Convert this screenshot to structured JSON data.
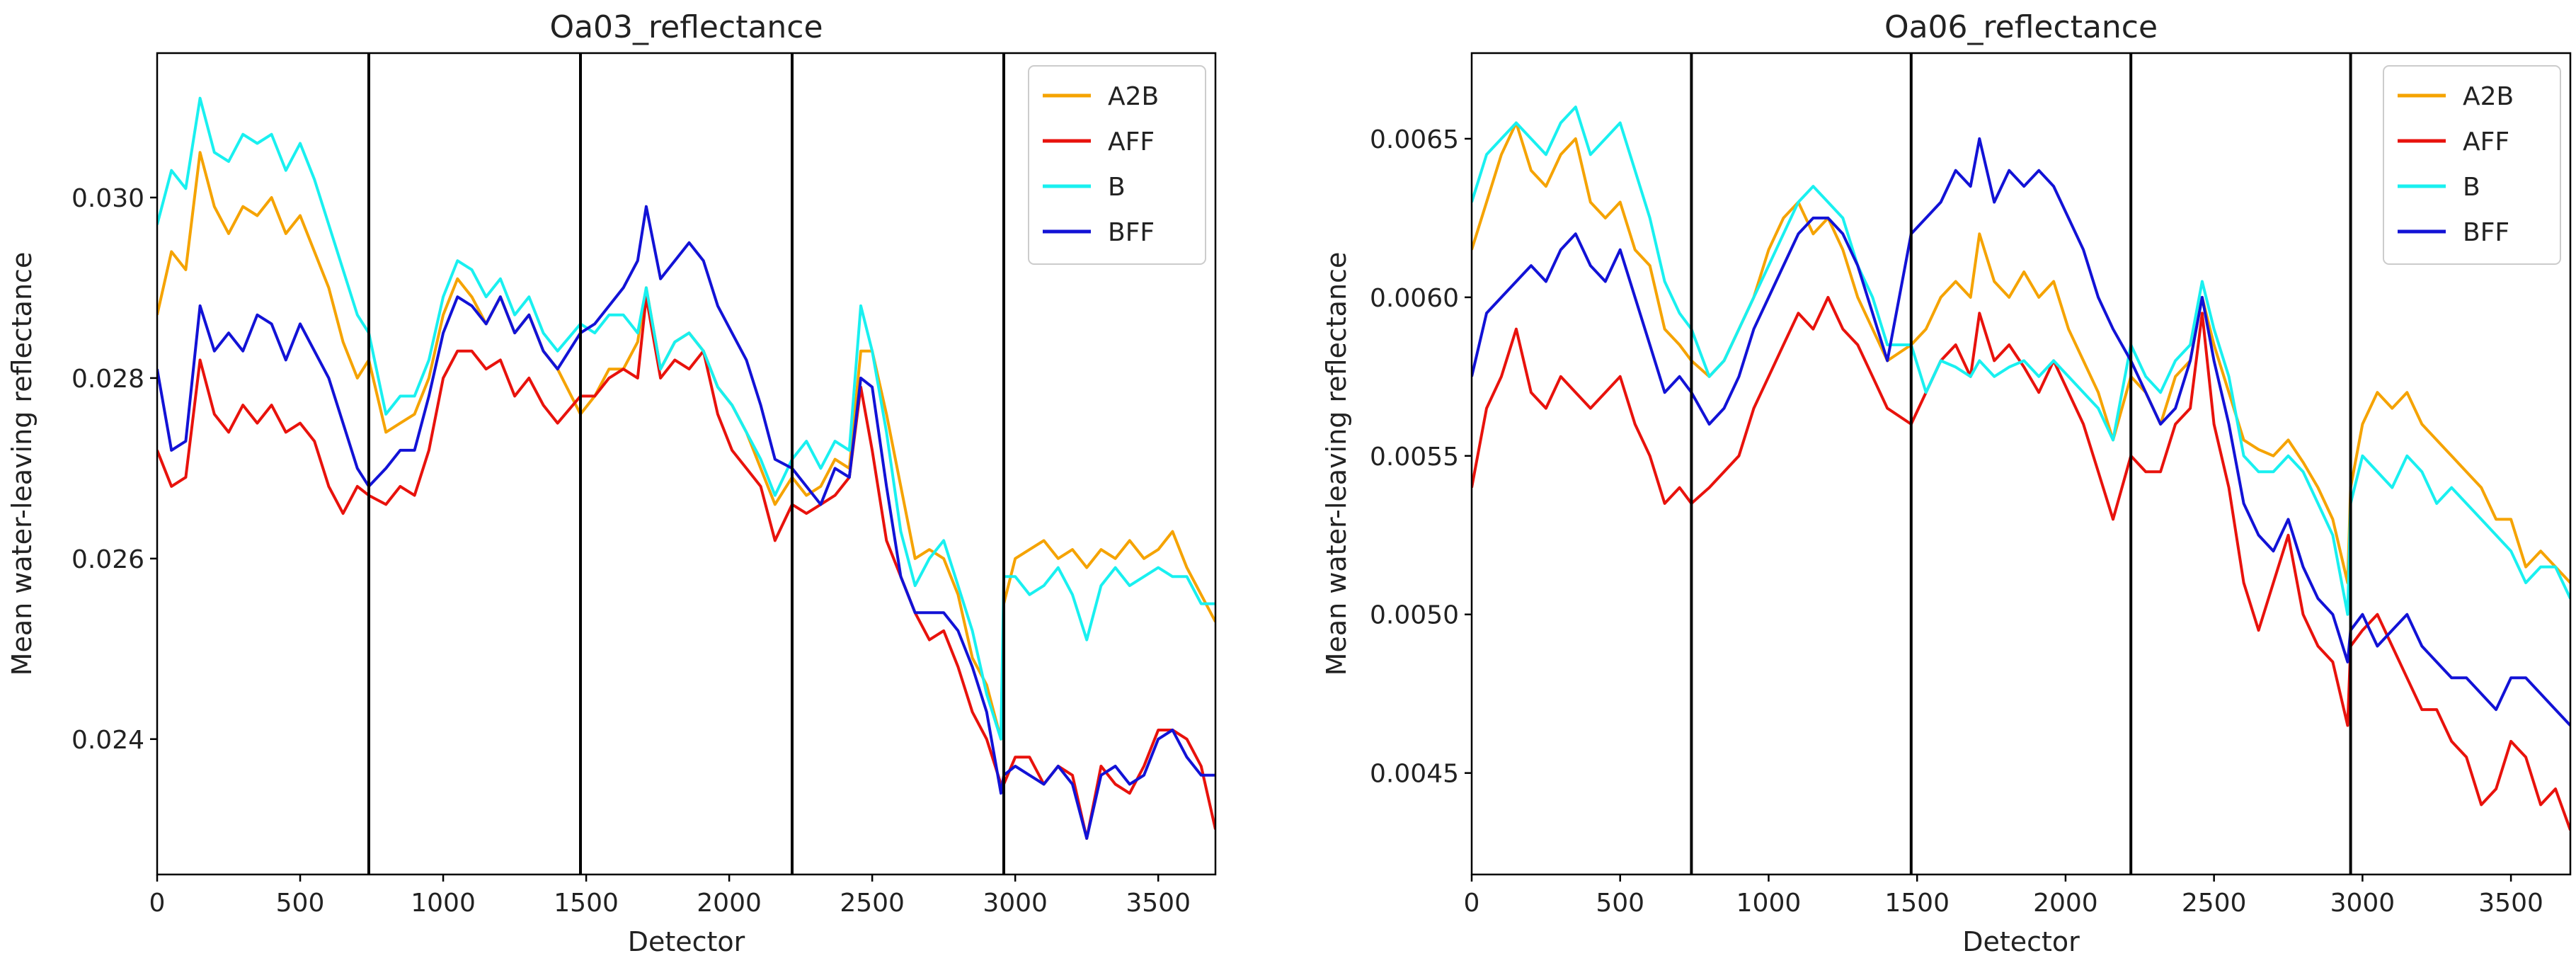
{
  "figure": {
    "series_colors": {
      "A2B": "#f5a300",
      "AFF": "#e8120c",
      "B": "#19f0f0",
      "BFF": "#1212d6"
    }
  },
  "chart_data": [
    {
      "type": "line",
      "title": "Oa03_reflectance",
      "xlabel": "Detector",
      "ylabel": "Mean water-leaving reflectance",
      "xlim": [
        0,
        3700
      ],
      "ylim": [
        0.0225,
        0.0316
      ],
      "xticks": [
        0,
        500,
        1000,
        1500,
        2000,
        2500,
        3000,
        3500
      ],
      "xtick_labels": [
        "0",
        "500",
        "1000",
        "1500",
        "2000",
        "2500",
        "3000",
        "3500"
      ],
      "yticks": [
        0.024,
        0.026,
        0.028,
        0.03
      ],
      "ytick_labels": [
        "0.024",
        "0.026",
        "0.028",
        "0.030"
      ],
      "vlines": [
        740,
        1480,
        2220,
        2960
      ],
      "legend_position": "top-right",
      "x": [
        0,
        50,
        100,
        150,
        200,
        250,
        300,
        350,
        400,
        450,
        500,
        550,
        600,
        650,
        700,
        740,
        800,
        850,
        900,
        950,
        1000,
        1050,
        1100,
        1150,
        1200,
        1250,
        1300,
        1350,
        1400,
        1480,
        1530,
        1580,
        1630,
        1680,
        1710,
        1760,
        1810,
        1860,
        1910,
        1960,
        2010,
        2060,
        2110,
        2160,
        2220,
        2270,
        2320,
        2370,
        2420,
        2460,
        2500,
        2550,
        2600,
        2650,
        2700,
        2750,
        2800,
        2850,
        2900,
        2950,
        2960,
        3000,
        3050,
        3100,
        3150,
        3200,
        3250,
        3300,
        3350,
        3400,
        3450,
        3500,
        3550,
        3600,
        3650,
        3700
      ],
      "series": [
        {
          "name": "A2B",
          "values": [
            0.0287,
            0.0294,
            0.0292,
            0.0305,
            0.0299,
            0.0296,
            0.0299,
            0.0298,
            0.03,
            0.0296,
            0.0298,
            0.0294,
            0.029,
            0.0284,
            0.028,
            0.0282,
            0.0274,
            0.0275,
            0.0276,
            0.028,
            0.0287,
            0.0291,
            0.0289,
            0.0286,
            0.0289,
            0.0285,
            0.0287,
            0.0283,
            0.0281,
            0.0276,
            0.0278,
            0.0281,
            0.0281,
            0.0284,
            0.029,
            0.0281,
            0.0284,
            0.0285,
            0.0283,
            0.0279,
            0.0277,
            0.0274,
            0.027,
            0.0266,
            0.0269,
            0.0267,
            0.0268,
            0.0271,
            0.027,
            0.0283,
            0.0283,
            0.0276,
            0.0268,
            0.026,
            0.0261,
            0.026,
            0.0256,
            0.0249,
            0.0246,
            0.024,
            0.0255,
            0.026,
            0.0261,
            0.0262,
            0.026,
            0.0261,
            0.0259,
            0.0261,
            0.026,
            0.0262,
            0.026,
            0.0261,
            0.0263,
            0.0259,
            0.0256,
            0.0253
          ]
        },
        {
          "name": "AFF",
          "values": [
            0.0272,
            0.0268,
            0.0269,
            0.0282,
            0.0276,
            0.0274,
            0.0277,
            0.0275,
            0.0277,
            0.0274,
            0.0275,
            0.0273,
            0.0268,
            0.0265,
            0.0268,
            0.0267,
            0.0266,
            0.0268,
            0.0267,
            0.0272,
            0.028,
            0.0283,
            0.0283,
            0.0281,
            0.0282,
            0.0278,
            0.028,
            0.0277,
            0.0275,
            0.0278,
            0.0278,
            0.028,
            0.0281,
            0.028,
            0.0289,
            0.028,
            0.0282,
            0.0281,
            0.0283,
            0.0276,
            0.0272,
            0.027,
            0.0268,
            0.0262,
            0.0266,
            0.0265,
            0.0266,
            0.0267,
            0.0269,
            0.0279,
            0.0272,
            0.0262,
            0.0258,
            0.0254,
            0.0251,
            0.0252,
            0.0248,
            0.0243,
            0.024,
            0.0235,
            0.0235,
            0.0238,
            0.0238,
            0.0235,
            0.0237,
            0.0236,
            0.0229,
            0.0237,
            0.0235,
            0.0234,
            0.0237,
            0.0241,
            0.0241,
            0.024,
            0.0237,
            0.023
          ]
        },
        {
          "name": "B",
          "values": [
            0.0297,
            0.0303,
            0.0301,
            0.0311,
            0.0305,
            0.0304,
            0.0307,
            0.0306,
            0.0307,
            0.0303,
            0.0306,
            0.0302,
            0.0297,
            0.0292,
            0.0287,
            0.0285,
            0.0276,
            0.0278,
            0.0278,
            0.0282,
            0.0289,
            0.0293,
            0.0292,
            0.0289,
            0.0291,
            0.0287,
            0.0289,
            0.0285,
            0.0283,
            0.0286,
            0.0285,
            0.0287,
            0.0287,
            0.0285,
            0.029,
            0.0281,
            0.0284,
            0.0285,
            0.0283,
            0.0279,
            0.0277,
            0.0274,
            0.0271,
            0.0267,
            0.0271,
            0.0273,
            0.027,
            0.0273,
            0.0272,
            0.0288,
            0.0283,
            0.0274,
            0.0263,
            0.0257,
            0.026,
            0.0262,
            0.0257,
            0.0252,
            0.0245,
            0.024,
            0.0258,
            0.0258,
            0.0256,
            0.0257,
            0.0259,
            0.0256,
            0.0251,
            0.0257,
            0.0259,
            0.0257,
            0.0258,
            0.0259,
            0.0258,
            0.0258,
            0.0255,
            0.0255
          ]
        },
        {
          "name": "BFF",
          "values": [
            0.0281,
            0.0272,
            0.0273,
            0.0288,
            0.0283,
            0.0285,
            0.0283,
            0.0287,
            0.0286,
            0.0282,
            0.0286,
            0.0283,
            0.028,
            0.0275,
            0.027,
            0.0268,
            0.027,
            0.0272,
            0.0272,
            0.0278,
            0.0285,
            0.0289,
            0.0288,
            0.0286,
            0.0289,
            0.0285,
            0.0287,
            0.0283,
            0.0281,
            0.0285,
            0.0286,
            0.0288,
            0.029,
            0.0293,
            0.0299,
            0.0291,
            0.0293,
            0.0295,
            0.0293,
            0.0288,
            0.0285,
            0.0282,
            0.0277,
            0.0271,
            0.027,
            0.0268,
            0.0266,
            0.027,
            0.0269,
            0.028,
            0.0279,
            0.0268,
            0.0258,
            0.0254,
            0.0254,
            0.0254,
            0.0252,
            0.0248,
            0.0243,
            0.0234,
            0.0236,
            0.0237,
            0.0236,
            0.0235,
            0.0237,
            0.0235,
            0.0229,
            0.0236,
            0.0237,
            0.0235,
            0.0236,
            0.024,
            0.0241,
            0.0238,
            0.0236,
            0.0236
          ]
        }
      ]
    },
    {
      "type": "line",
      "title": "Oa06_reflectance",
      "xlabel": "Detector",
      "ylabel": "Mean water-leaving reflectance",
      "xlim": [
        0,
        3700
      ],
      "ylim": [
        0.00418,
        0.00677
      ],
      "xticks": [
        0,
        500,
        1000,
        1500,
        2000,
        2500,
        3000,
        3500
      ],
      "xtick_labels": [
        "0",
        "500",
        "1000",
        "1500",
        "2000",
        "2500",
        "3000",
        "3500"
      ],
      "yticks": [
        0.0045,
        0.005,
        0.0055,
        0.006,
        0.0065
      ],
      "ytick_labels": [
        "0.0045",
        "0.0050",
        "0.0055",
        "0.0060",
        "0.0065"
      ],
      "vlines": [
        740,
        1480,
        2220,
        2960
      ],
      "legend_position": "top-right",
      "x": [
        0,
        50,
        100,
        150,
        200,
        250,
        300,
        350,
        400,
        450,
        500,
        550,
        600,
        650,
        700,
        740,
        800,
        850,
        900,
        950,
        1000,
        1050,
        1100,
        1150,
        1200,
        1250,
        1300,
        1350,
        1400,
        1480,
        1530,
        1580,
        1630,
        1680,
        1710,
        1760,
        1810,
        1860,
        1910,
        1960,
        2010,
        2060,
        2110,
        2160,
        2220,
        2270,
        2320,
        2370,
        2420,
        2460,
        2500,
        2550,
        2600,
        2650,
        2700,
        2750,
        2800,
        2850,
        2900,
        2950,
        2960,
        3000,
        3050,
        3100,
        3150,
        3200,
        3250,
        3300,
        3350,
        3400,
        3450,
        3500,
        3550,
        3600,
        3650,
        3700
      ],
      "series": [
        {
          "name": "A2B",
          "values": [
            0.00615,
            0.0063,
            0.00645,
            0.00655,
            0.0064,
            0.00635,
            0.00645,
            0.0065,
            0.0063,
            0.00625,
            0.0063,
            0.00615,
            0.0061,
            0.0059,
            0.00585,
            0.0058,
            0.00575,
            0.0058,
            0.0059,
            0.006,
            0.00615,
            0.00625,
            0.0063,
            0.0062,
            0.00625,
            0.00615,
            0.006,
            0.0059,
            0.0058,
            0.00585,
            0.0059,
            0.006,
            0.00605,
            0.006,
            0.0062,
            0.00605,
            0.006,
            0.00608,
            0.006,
            0.00605,
            0.0059,
            0.0058,
            0.0057,
            0.00555,
            0.00575,
            0.0057,
            0.0056,
            0.00575,
            0.0058,
            0.006,
            0.00585,
            0.0057,
            0.00555,
            0.00552,
            0.0055,
            0.00555,
            0.00548,
            0.0054,
            0.0053,
            0.0051,
            0.0054,
            0.0056,
            0.0057,
            0.00565,
            0.0057,
            0.0056,
            0.00555,
            0.0055,
            0.00545,
            0.0054,
            0.0053,
            0.0053,
            0.00515,
            0.0052,
            0.00515,
            0.0051
          ]
        },
        {
          "name": "AFF",
          "values": [
            0.0054,
            0.00565,
            0.00575,
            0.0059,
            0.0057,
            0.00565,
            0.00575,
            0.0057,
            0.00565,
            0.0057,
            0.00575,
            0.0056,
            0.0055,
            0.00535,
            0.0054,
            0.00535,
            0.0054,
            0.00545,
            0.0055,
            0.00565,
            0.00575,
            0.00585,
            0.00595,
            0.0059,
            0.006,
            0.0059,
            0.00585,
            0.00575,
            0.00565,
            0.0056,
            0.0057,
            0.0058,
            0.00585,
            0.00575,
            0.00595,
            0.0058,
            0.00585,
            0.00578,
            0.0057,
            0.0058,
            0.0057,
            0.0056,
            0.00545,
            0.0053,
            0.0055,
            0.00545,
            0.00545,
            0.0056,
            0.00565,
            0.00595,
            0.0056,
            0.0054,
            0.0051,
            0.00495,
            0.0051,
            0.00525,
            0.005,
            0.0049,
            0.00485,
            0.00465,
            0.0049,
            0.00495,
            0.005,
            0.0049,
            0.0048,
            0.0047,
            0.0047,
            0.0046,
            0.00455,
            0.0044,
            0.00445,
            0.0046,
            0.00455,
            0.0044,
            0.00445,
            0.00432
          ]
        },
        {
          "name": "B",
          "values": [
            0.0063,
            0.00645,
            0.0065,
            0.00655,
            0.0065,
            0.00645,
            0.00655,
            0.0066,
            0.00645,
            0.0065,
            0.00655,
            0.0064,
            0.00625,
            0.00605,
            0.00595,
            0.0059,
            0.00575,
            0.0058,
            0.0059,
            0.006,
            0.0061,
            0.0062,
            0.0063,
            0.00635,
            0.0063,
            0.00625,
            0.0061,
            0.006,
            0.00585,
            0.00585,
            0.0057,
            0.0058,
            0.00578,
            0.00575,
            0.0058,
            0.00575,
            0.00578,
            0.0058,
            0.00575,
            0.0058,
            0.00575,
            0.0057,
            0.00565,
            0.00555,
            0.00585,
            0.00575,
            0.0057,
            0.0058,
            0.00585,
            0.00605,
            0.0059,
            0.00575,
            0.0055,
            0.00545,
            0.00545,
            0.0055,
            0.00545,
            0.00535,
            0.00525,
            0.005,
            0.00535,
            0.0055,
            0.00545,
            0.0054,
            0.0055,
            0.00545,
            0.00535,
            0.0054,
            0.00535,
            0.0053,
            0.00525,
            0.0052,
            0.0051,
            0.00515,
            0.00515,
            0.00505
          ]
        },
        {
          "name": "BFF",
          "values": [
            0.00575,
            0.00595,
            0.006,
            0.00605,
            0.0061,
            0.00605,
            0.00615,
            0.0062,
            0.0061,
            0.00605,
            0.00615,
            0.006,
            0.00585,
            0.0057,
            0.00575,
            0.0057,
            0.0056,
            0.00565,
            0.00575,
            0.0059,
            0.006,
            0.0061,
            0.0062,
            0.00625,
            0.00625,
            0.0062,
            0.0061,
            0.00595,
            0.0058,
            0.0062,
            0.00625,
            0.0063,
            0.0064,
            0.00635,
            0.0065,
            0.0063,
            0.0064,
            0.00635,
            0.0064,
            0.00635,
            0.00625,
            0.00615,
            0.006,
            0.0059,
            0.0058,
            0.0057,
            0.0056,
            0.00565,
            0.0058,
            0.006,
            0.0058,
            0.0056,
            0.00535,
            0.00525,
            0.0052,
            0.0053,
            0.00515,
            0.00505,
            0.005,
            0.00485,
            0.00495,
            0.005,
            0.0049,
            0.00495,
            0.005,
            0.0049,
            0.00485,
            0.0048,
            0.0048,
            0.00475,
            0.0047,
            0.0048,
            0.0048,
            0.00475,
            0.0047,
            0.00465
          ]
        }
      ]
    }
  ]
}
